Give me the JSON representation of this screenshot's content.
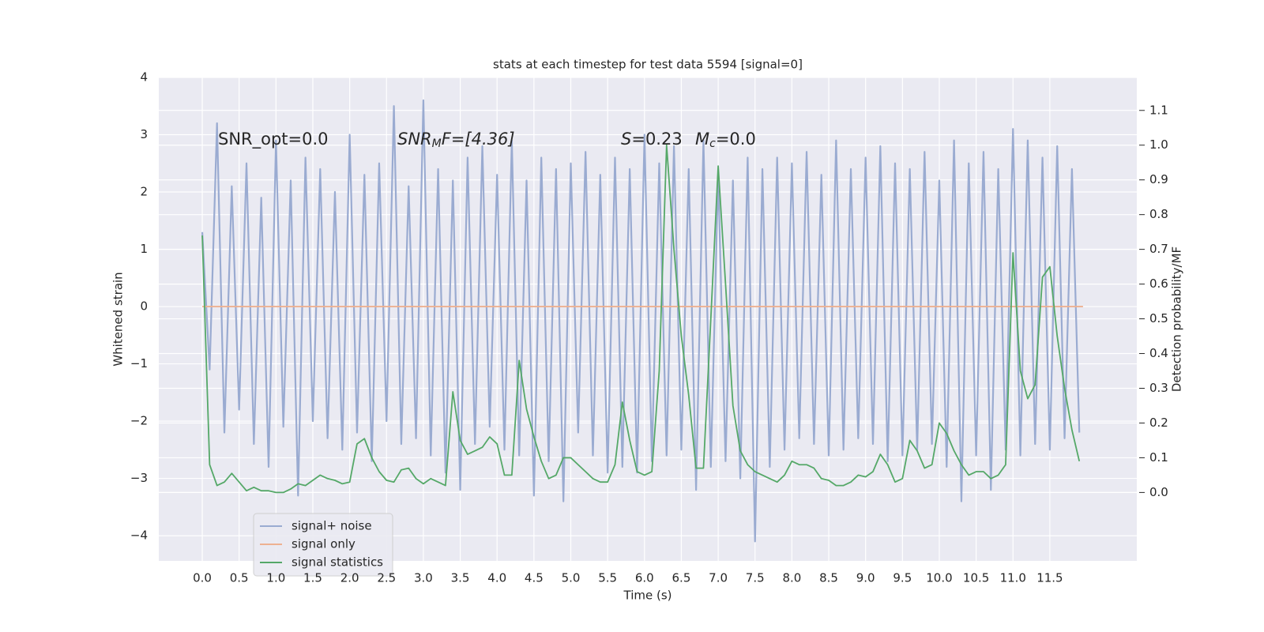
{
  "chart_data": {
    "type": "line",
    "title": "stats at each timestep for test data 5594 [signal=0]",
    "xlabel": "Time (s)",
    "ylabel": "Whitened strain",
    "y2label": "Detection probability/MF",
    "annotations": [
      {
        "parts": [
          "SNR_opt=0.0"
        ]
      },
      {
        "parts": [
          "SNR",
          "M",
          "F=[4.36]"
        ]
      },
      {
        "parts": [
          "S",
          "=0.23"
        ]
      },
      {
        "parts": [
          "M",
          "c",
          "=0.0"
        ]
      }
    ],
    "xlim": [
      -0.59,
      12.68
    ],
    "ylim": [
      -4.44,
      4.0
    ],
    "y2lim": [
      -0.197,
      1.195
    ],
    "xticks": [
      {
        "value": 0,
        "label": "0.0"
      },
      {
        "value": 0.5,
        "label": "0.5"
      },
      {
        "value": 1,
        "label": "1.0"
      },
      {
        "value": 1.5,
        "label": "1.5"
      },
      {
        "value": 2,
        "label": "2.0"
      },
      {
        "value": 2.5,
        "label": "2.5"
      },
      {
        "value": 3,
        "label": "3.0"
      },
      {
        "value": 3.5,
        "label": "3.5"
      },
      {
        "value": 4,
        "label": "4.0"
      },
      {
        "value": 4.5,
        "label": "4.5"
      },
      {
        "value": 5,
        "label": "5.0"
      },
      {
        "value": 5.5,
        "label": "5.5"
      },
      {
        "value": 6,
        "label": "6.0"
      },
      {
        "value": 6.5,
        "label": "6.5"
      },
      {
        "value": 7,
        "label": "7.0"
      },
      {
        "value": 7.5,
        "label": "7.5"
      },
      {
        "value": 8,
        "label": "8.0"
      },
      {
        "value": 8.5,
        "label": "8.5"
      },
      {
        "value": 9,
        "label": "9.0"
      },
      {
        "value": 9.5,
        "label": "9.5"
      },
      {
        "value": 10,
        "label": "10.0"
      },
      {
        "value": 10.5,
        "label": "10.5"
      },
      {
        "value": 11,
        "label": "11.0"
      },
      {
        "value": 11.5,
        "label": "11.5"
      }
    ],
    "yticks": [
      {
        "value": -4,
        "label": "−4"
      },
      {
        "value": -3,
        "label": "−3"
      },
      {
        "value": -2,
        "label": "−2"
      },
      {
        "value": -1,
        "label": "−1"
      },
      0,
      1,
      2,
      3,
      4
    ],
    "y2ticks": [
      {
        "value": 0,
        "label": "0.0"
      },
      {
        "value": 0.1,
        "label": "0.1"
      },
      {
        "value": 0.2,
        "label": "0.2"
      },
      {
        "value": 0.3,
        "label": "0.3"
      },
      {
        "value": 0.4,
        "label": "0.4"
      },
      {
        "value": 0.5,
        "label": "0.5"
      },
      {
        "value": 0.6,
        "label": "0.6"
      },
      {
        "value": 0.7,
        "label": "0.7"
      },
      {
        "value": 0.8,
        "label": "0.8"
      },
      {
        "value": 0.9,
        "label": "0.9"
      },
      {
        "value": 1,
        "label": "1.0"
      },
      {
        "value": 1.1,
        "label": "1.1"
      }
    ],
    "grid": true,
    "legend": "lower left",
    "x": [
      0.0,
      0.1,
      0.2,
      0.3,
      0.4,
      0.5,
      0.6,
      0.7,
      0.8,
      0.9,
      1.0,
      1.1,
      1.2,
      1.3,
      1.4,
      1.5,
      1.6,
      1.7,
      1.8,
      1.9,
      2.0,
      2.1,
      2.2,
      2.3,
      2.4,
      2.5,
      2.6,
      2.7,
      2.8,
      2.9,
      3.0,
      3.1,
      3.2,
      3.3,
      3.4,
      3.5,
      3.6,
      3.7,
      3.8,
      3.9,
      4.0,
      4.1,
      4.2,
      4.3,
      4.4,
      4.5,
      4.6,
      4.7,
      4.8,
      4.9,
      5.0,
      5.1,
      5.2,
      5.3,
      5.4,
      5.5,
      5.6,
      5.7,
      5.8,
      5.9,
      6.0,
      6.1,
      6.2,
      6.3,
      6.4,
      6.5,
      6.6,
      6.7,
      6.8,
      6.9,
      7.0,
      7.1,
      7.2,
      7.3,
      7.4,
      7.5,
      7.6,
      7.7,
      7.8,
      7.9,
      8.0,
      8.1,
      8.2,
      8.3,
      8.4,
      8.5,
      8.6,
      8.7,
      8.8,
      8.9,
      9.0,
      9.1,
      9.2,
      9.3,
      9.4,
      9.5,
      9.6,
      9.7,
      9.8,
      9.9,
      10.0,
      10.1,
      10.2,
      10.3,
      10.4,
      10.5,
      10.6,
      10.7,
      10.8,
      10.9,
      11.0,
      11.1,
      11.2,
      11.3,
      11.4,
      11.5,
      11.6,
      11.7,
      11.8,
      11.9
    ],
    "series": [
      {
        "name": "signal+ noise",
        "color": "#9aabd1",
        "values": [
          1.3,
          -1.1,
          3.2,
          -2.2,
          2.1,
          -1.8,
          2.5,
          -2.4,
          1.9,
          -2.8,
          2.9,
          -2.1,
          2.2,
          -3.3,
          2.6,
          -2.0,
          2.4,
          -2.3,
          2.0,
          -2.5,
          3.0,
          -2.2,
          2.3,
          -2.7,
          2.5,
          -2.0,
          3.5,
          -2.4,
          2.1,
          -2.3,
          3.6,
          -2.6,
          2.4,
          -2.9,
          2.2,
          -3.2,
          2.6,
          -2.4,
          2.8,
          -2.1,
          2.3,
          -2.5,
          2.9,
          -2.6,
          2.2,
          -3.3,
          2.6,
          -2.7,
          2.4,
          -3.4,
          2.5,
          -2.2,
          2.7,
          -2.6,
          2.3,
          -2.9,
          2.6,
          -2.8,
          2.4,
          -2.9,
          3.0,
          -2.7,
          2.5,
          -2.6,
          2.8,
          -2.5,
          2.4,
          -3.2,
          2.9,
          -2.8,
          2.3,
          -2.7,
          2.2,
          -3.0,
          2.6,
          -4.1,
          2.4,
          -2.8,
          2.6,
          -2.5,
          2.5,
          -2.3,
          2.7,
          -2.4,
          2.3,
          -2.6,
          2.9,
          -2.5,
          2.4,
          -2.3,
          2.6,
          -2.4,
          2.8,
          -2.7,
          2.5,
          -2.6,
          2.4,
          -2.5,
          2.7,
          -2.4,
          2.2,
          -2.8,
          2.9,
          -3.4,
          2.5,
          -2.6,
          2.7,
          -3.2,
          2.4,
          -2.5,
          3.1,
          -2.6,
          2.9,
          -2.4,
          2.6,
          -2.5,
          2.8,
          -2.3,
          2.4,
          -2.2
        ]
      },
      {
        "name": "signal only",
        "color": "#eeb191",
        "x": [
          0.0,
          11.95
        ],
        "values": [
          0,
          0
        ]
      },
      {
        "name": "signal statistics",
        "color": "#55a868",
        "axis": "y2",
        "values": [
          0.74,
          0.08,
          0.02,
          0.03,
          0.055,
          0.03,
          0.005,
          0.015,
          0.005,
          0.005,
          0.0,
          0.0,
          0.01,
          0.025,
          0.02,
          0.035,
          0.05,
          0.04,
          0.035,
          0.025,
          0.03,
          0.14,
          0.155,
          0.1,
          0.06,
          0.035,
          0.03,
          0.065,
          0.07,
          0.04,
          0.025,
          0.04,
          0.03,
          0.02,
          0.29,
          0.15,
          0.11,
          0.12,
          0.13,
          0.16,
          0.14,
          0.05,
          0.05,
          0.38,
          0.24,
          0.16,
          0.09,
          0.04,
          0.05,
          0.1,
          0.1,
          0.08,
          0.06,
          0.04,
          0.03,
          0.03,
          0.08,
          0.26,
          0.15,
          0.06,
          0.05,
          0.06,
          0.35,
          1.0,
          0.7,
          0.45,
          0.28,
          0.07,
          0.07,
          0.5,
          0.94,
          0.6,
          0.25,
          0.12,
          0.08,
          0.06,
          0.05,
          0.04,
          0.03,
          0.05,
          0.09,
          0.08,
          0.08,
          0.07,
          0.04,
          0.035,
          0.02,
          0.02,
          0.03,
          0.05,
          0.045,
          0.06,
          0.11,
          0.08,
          0.03,
          0.04,
          0.15,
          0.12,
          0.07,
          0.08,
          0.2,
          0.17,
          0.12,
          0.08,
          0.05,
          0.06,
          0.06,
          0.04,
          0.05,
          0.08,
          0.69,
          0.35,
          0.27,
          0.31,
          0.62,
          0.65,
          0.45,
          0.3,
          0.18,
          0.09
        ]
      }
    ]
  }
}
